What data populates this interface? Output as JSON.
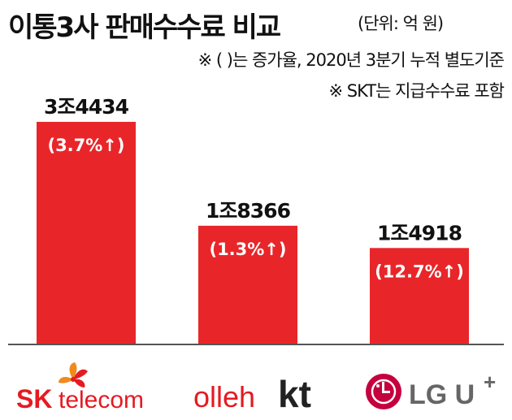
{
  "header": {
    "title": "이통3사 판매수수료 비교",
    "unit": "(단위: 억 원)"
  },
  "notes": [
    "※ (    )는 증가율, 2020년 3분기 누적 별도기준",
    "※ SKT는 지급수수료 포함"
  ],
  "chart_data": {
    "type": "bar",
    "categories": [
      "SK telecom",
      "olleh kt",
      "LG U+"
    ],
    "values": [
      34434,
      18366,
      14918
    ],
    "value_labels": [
      "3조4434",
      "1조8366",
      "1조4918"
    ],
    "growth_labels": [
      "(3.7%↑)",
      "(1.3%↑)",
      "(12.7%↑)"
    ],
    "growth_pct": [
      3.7,
      1.3,
      12.7
    ],
    "bar_color": "#e8262a",
    "ylim": [
      0,
      34434
    ]
  },
  "logos": {
    "sk": {
      "word_sk": "SK",
      "word_rest": "telecom",
      "brand_red": "#e51a22",
      "brand_orange": "#f08a1c"
    },
    "kt": {
      "word_olleh": "olleh",
      "word_kt": "kt",
      "brand_red": "#e51a22",
      "brand_black": "#222222"
    },
    "lgu": {
      "word": "LG U",
      "plus": "+",
      "brand_magenta": "#c5003e",
      "brand_gray": "#666666"
    }
  }
}
